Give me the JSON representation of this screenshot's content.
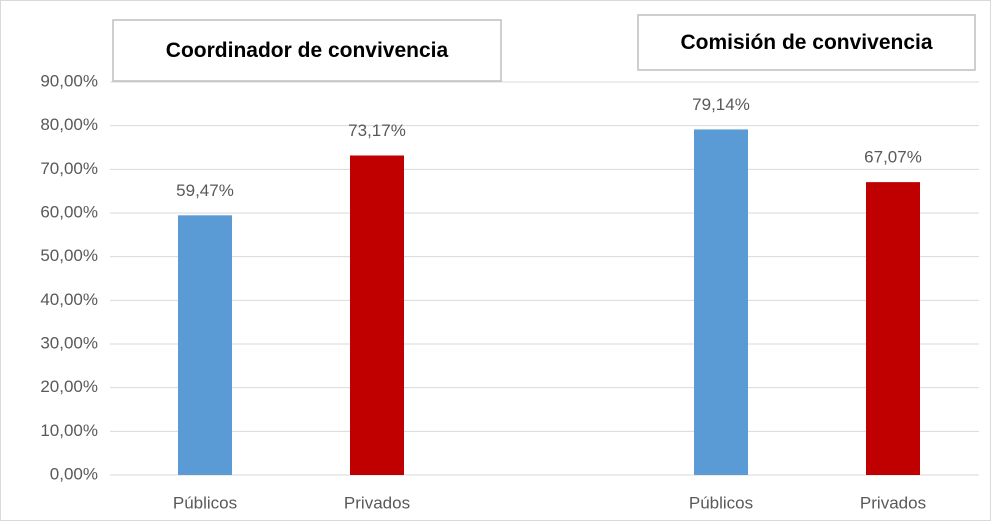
{
  "chart_data": {
    "type": "bar",
    "categories": [
      "Públicos",
      "Privados",
      null,
      "Públicos",
      "Privados"
    ],
    "values": [
      59.47,
      73.17,
      null,
      79.14,
      67.07
    ],
    "value_labels": [
      "59,47%",
      "73,17%",
      null,
      "79,14%",
      "67,07%"
    ],
    "colors": [
      "#5b9bd5",
      "#c00000",
      null,
      "#5b9bd5",
      "#c00000"
    ],
    "ylim": [
      0,
      90
    ],
    "yticks": [
      {
        "value": 0,
        "label": "0,00%"
      },
      {
        "value": 10,
        "label": "10,00%"
      },
      {
        "value": 20,
        "label": "20,00%"
      },
      {
        "value": 30,
        "label": "30,00%"
      },
      {
        "value": 40,
        "label": "40,00%"
      },
      {
        "value": 50,
        "label": "50,00%"
      },
      {
        "value": 60,
        "label": "60,00%"
      },
      {
        "value": 70,
        "label": "70,00%"
      },
      {
        "value": 80,
        "label": "80,00%"
      },
      {
        "value": 90,
        "label": "90,00%"
      }
    ],
    "grid": true,
    "annotations": [
      {
        "text": "Coordinador de convivencia"
      },
      {
        "text": "Comisión de convivencia"
      }
    ]
  }
}
